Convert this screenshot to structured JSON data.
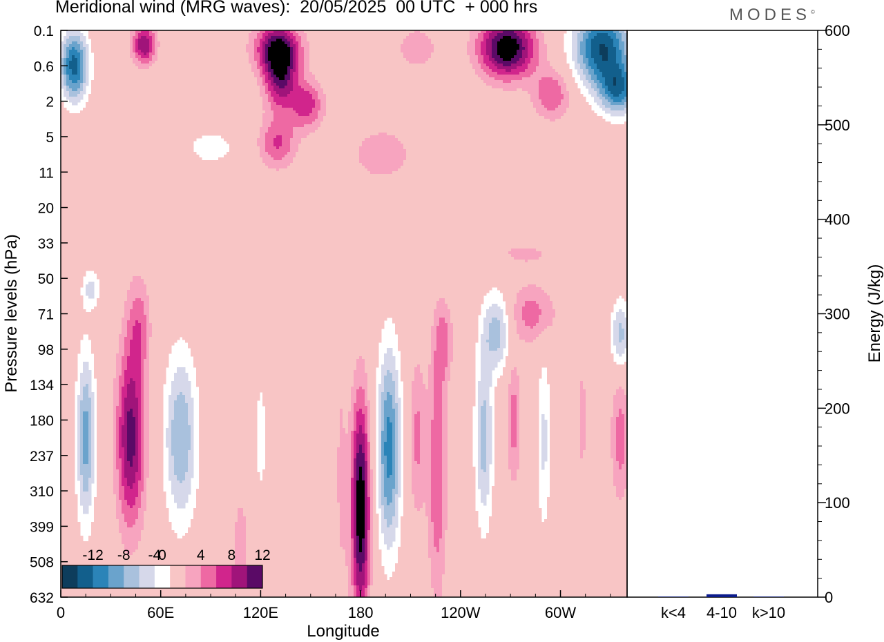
{
  "title": "Meridional wind (MRG waves):  20/05/2025  00 UTC  + 000 hrs",
  "brand": "MODES",
  "brand_mark": "©",
  "colors": {
    "neg": [
      "#0d3d5c",
      "#125f8c",
      "#2b84b8",
      "#6aa3cc",
      "#a9c1dd",
      "#d6d8ea"
    ],
    "zero": "#ffffff",
    "pos": [
      "#f8c5c5",
      "#f7a4bf",
      "#ee69a3",
      "#d1258c",
      "#a0147a",
      "#5a0a66"
    ],
    "bar": "#0c1c8c"
  },
  "chart_data": [
    {
      "type": "heatmap",
      "title": "Meridional wind (MRG waves):  20/05/2025  00 UTC  + 000 hrs",
      "xlabel": "Longitude",
      "ylabel": "Pressure levels (hPa)",
      "x_ticks": [
        "0",
        "60E",
        "120E",
        "180",
        "120W",
        "60W"
      ],
      "x_tick_values": [
        0,
        60,
        120,
        180,
        240,
        300
      ],
      "xlim": [
        0,
        340
      ],
      "y_ticks": [
        "0.1",
        "0.6",
        "2",
        "5",
        "11",
        "20",
        "33",
        "50",
        "71",
        "98",
        "134",
        "180",
        "237",
        "310",
        "399",
        "508",
        "632"
      ],
      "colorbar_labels": [
        "-12",
        "-8",
        "-4",
        "0",
        "4",
        "8",
        "12"
      ],
      "colorbar_levels": [
        -14,
        -12,
        -10,
        -8,
        -6,
        -4,
        -2,
        2,
        4,
        6,
        8,
        10,
        12,
        14
      ],
      "features": [
        {
          "lon": 15,
          "level": 11.5,
          "v": -9,
          "lon_width": 4,
          "level_width": 1.7
        },
        {
          "lon": 42,
          "level": 11.5,
          "v": 11,
          "lon_width": 6,
          "level_width": 1.8
        },
        {
          "lon": 72,
          "level": 11.5,
          "v": -8,
          "lon_width": 7,
          "level_width": 1.7
        },
        {
          "lon": 108,
          "level": 14.5,
          "v": 2.5,
          "lon_width": 5,
          "level_width": 1.6
        },
        {
          "lon": 120,
          "level": 11.5,
          "v": -3,
          "lon_width": 3,
          "level_width": 1.4
        },
        {
          "lon": 168,
          "level": 12.5,
          "v": 2.2,
          "lon_width": 3,
          "level_width": 3.5
        },
        {
          "lon": 180,
          "level": 13.5,
          "v": 14,
          "lon_width": 4,
          "level_width": 2.2
        },
        {
          "lon": 197,
          "level": 11.8,
          "v": -11,
          "lon_width": 5,
          "level_width": 2.0
        },
        {
          "lon": 214,
          "level": 11.5,
          "v": 4.5,
          "lon_width": 3.5,
          "level_width": 1.6
        },
        {
          "lon": 226,
          "level": 12.5,
          "v": 6,
          "lon_width": 4,
          "level_width": 2.5
        },
        {
          "lon": 230,
          "level": 8.8,
          "v": 4.5,
          "lon_width": 4,
          "level_width": 0.8
        },
        {
          "lon": 254,
          "level": 11.5,
          "v": -7,
          "lon_width": 4,
          "level_width": 1.8
        },
        {
          "lon": 272,
          "level": 11.0,
          "v": 5,
          "lon_width": 3,
          "level_width": 1.3
        },
        {
          "lon": 290,
          "level": 11.6,
          "v": -4.5,
          "lon_width": 3,
          "level_width": 1.8
        },
        {
          "lon": 313,
          "level": 11.0,
          "v": 2.5,
          "lon_width": 3,
          "level_width": 1.7
        },
        {
          "lon": 336,
          "level": 11.5,
          "v": 5,
          "lon_width": 4,
          "level_width": 1.3
        },
        {
          "lon": 262,
          "level": 8.5,
          "v": -7,
          "lon_width": 6,
          "level_width": 0.8
        },
        {
          "lon": 283,
          "level": 8.0,
          "v": 5,
          "lon_width": 10,
          "level_width": 0.6
        },
        {
          "lon": 336,
          "level": 8.6,
          "v": -7,
          "lon_width": 4,
          "level_width": 0.7
        },
        {
          "lon": 47,
          "level": 8.3,
          "v": 4.5,
          "lon_width": 5,
          "level_width": 1.0
        },
        {
          "lon": 18,
          "level": 7.3,
          "v": -4.5,
          "lon_width": 4,
          "level_width": 0.4
        },
        {
          "lon": 8,
          "level": 1.0,
          "v": -13,
          "lon_width": 6,
          "level_width": 0.7
        },
        {
          "lon": 50,
          "level": 0.4,
          "v": 10,
          "lon_width": 5,
          "level_width": 0.4
        },
        {
          "lon": 130,
          "level": 0.5,
          "v": 10,
          "lon_width": 10,
          "level_width": 0.5
        },
        {
          "lon": 132,
          "level": 1.3,
          "v": 10,
          "lon_width": 7,
          "level_width": 0.7
        },
        {
          "lon": 148,
          "level": 2.1,
          "v": 7,
          "lon_width": 7,
          "level_width": 0.5
        },
        {
          "lon": 130,
          "level": 3.2,
          "v": 6,
          "lon_width": 8,
          "level_width": 0.5
        },
        {
          "lon": 193,
          "level": 3.5,
          "v": 4,
          "lon_width": 12,
          "level_width": 0.5
        },
        {
          "lon": 214,
          "level": 0.5,
          "v": 4,
          "lon_width": 8,
          "level_width": 0.4
        },
        {
          "lon": 268,
          "level": 0.5,
          "v": 14,
          "lon_width": 12,
          "level_width": 0.6
        },
        {
          "lon": 295,
          "level": 1.8,
          "v": 6,
          "lon_width": 8,
          "level_width": 0.5
        },
        {
          "lon": 325,
          "level": 0.5,
          "v": -14,
          "lon_width": 12,
          "level_width": 0.8
        },
        {
          "lon": 335,
          "level": 1.7,
          "v": -10,
          "lon_width": 8,
          "level_width": 0.5
        },
        {
          "lon": 90,
          "level": 3.3,
          "v": -3,
          "lon_width": 12,
          "level_width": 0.4
        },
        {
          "lon": 278,
          "level": 6.3,
          "v": 2.3,
          "lon_width": 18,
          "level_width": 0.3
        }
      ]
    },
    {
      "type": "bar",
      "ylabel": "Energy (J/kg)",
      "ylim": [
        0,
        600
      ],
      "y_ticks": [
        "0",
        "100",
        "200",
        "300",
        "400",
        "500",
        "600"
      ],
      "categories": [
        "k<4",
        "4-10",
        "k>10"
      ],
      "values": [
        0.5,
        3,
        0.5
      ]
    }
  ]
}
